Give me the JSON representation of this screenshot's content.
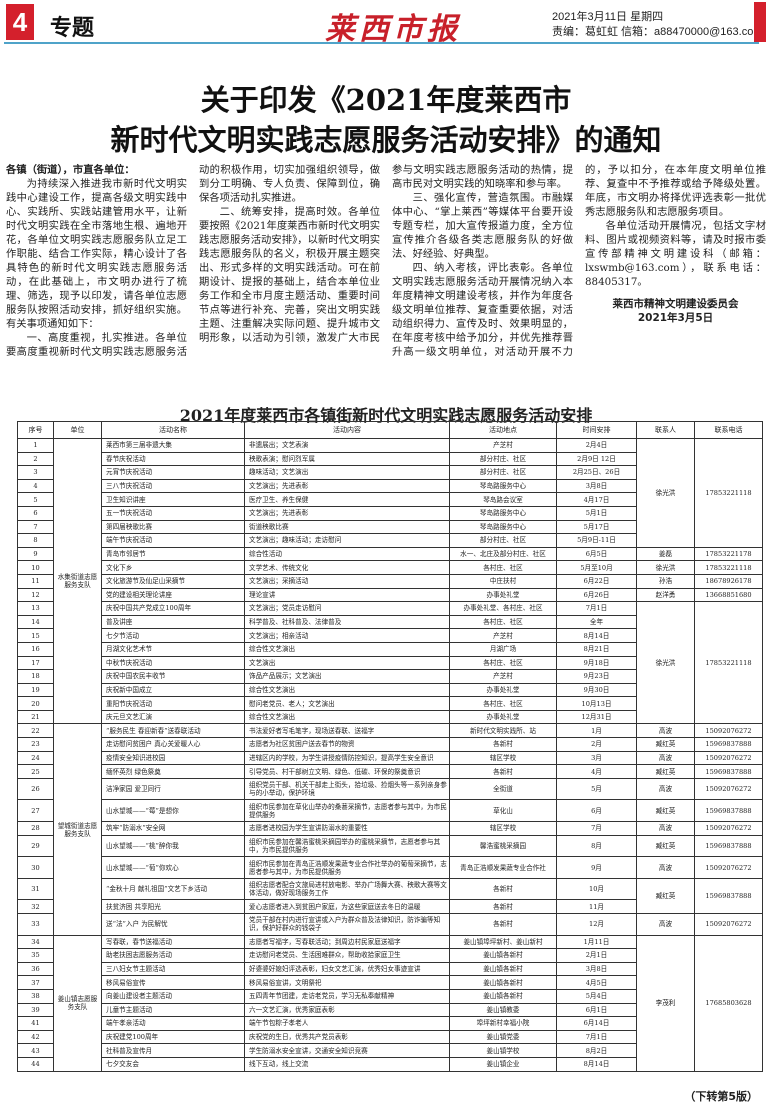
{
  "header": {
    "page_number": "4",
    "section": "专题",
    "masthead": "莱西市报",
    "date": "2021年3月11日 星期四",
    "editor": "责编：葛虹虹  信箱：a88470000@163.com",
    "accent_color": "#d4202c",
    "rule_color": "#4fa3c9"
  },
  "headline": {
    "line1": "关于印发《2021年度莱西市",
    "line2": "新时代文明实践志愿服务活动安排》的通知"
  },
  "article": {
    "salutation": "各镇（街道），市直各单位：",
    "paragraphs": [
      "为持续深入推进我市新时代文明实践中心建设工作，提高各级文明实践中心、实践所、实践站建管用水平，让新时代文明实践在全市落地生根、遍地开花，各单位文明实践志愿服务队立足工作职能、结合工作实际，精心设计了各具特色的新时代文明实践志愿服务活动，在此基础上，市文明办进行了梳理、筛选，现予以印发，请各单位志愿服务队按照活动安排，抓好组织实施。有关事项通知如下：",
      "一、高度重视，扎实推进。各单位要高度重视新时代文明实践志愿服务活动的积极作用，切实加强组织领导，做到分工明确、专人负责、保障到位，确保各项活动扎实推进。",
      "二、统筹安排，提高时效。各单位要按照《2021年度莱西市新时代文明实践志愿服务活动安排》，以新时代文明实践志愿服务队的名义，积极开展主题突出、形式多样的文明实践活动。可在前期设计、提报的基础上，结合本单位业务工作和全市月度主题活动、重要时间节点等进行补充、完善，突出文明实践主题、注重解决实际问题、提升城市文明形象，以活动为引领，激发广大市民参与文明实践志愿服务活动的热情，提高市民对文明实践的知晓率和参与率。",
      "三、强化宣传，营造氛围。市融媒体中心、“掌上莱西”等媒体平台要开设专题专栏，加大宣传报道力度，全方位宣传推介各级各类志愿服务队的好做法、好经验、好典型。",
      "四、纳入考核，评比表彰。各单位文明实践志愿服务活动开展情况纳入本年度精神文明建设考核，并作为年度各级文明单位推荐、复查重要依据，对活动组织得力、宣传及时、效果明显的，在年度考核中给予加分，并优先推荐晋升高一级文明单位，对活动开展不力的，予以扣分，在本年度文明单位推荐、复查中不予推荐或给予降级处置。年底，市文明办将择优评选表彰一批优秀志愿服务队和志愿服务项目。",
      "各单位活动开展情况，包括文字材料、图片或视频资料等，请及时报市委宣传部精神文明建设科（邮箱：lxswmb@163.com），联系电话：88405317。"
    ],
    "signer": "莱西市精神文明建设委员会",
    "sign_date": "2021年3月5日"
  },
  "table": {
    "title": "2021年度莱西市各镇街新时代文明实践志愿服务活动安排",
    "columns": [
      "序号",
      "单位",
      "活动名称",
      "活动内容",
      "活动地点",
      "时间安排",
      "联系人",
      "联系电话"
    ],
    "units": [
      {
        "name": "水集街道志愿服务支队",
        "groups": [
          {
            "contact": "徐光洪",
            "phone": "17853221118",
            "rows": [
              [
                "1",
                "莱西市第三届非遗大集",
                "非遗展出；文艺表演",
                "产芝村",
                "2月4日"
              ],
              [
                "2",
                "春节庆祝活动",
                "秧歌表演；慰问烈军属",
                "部分村庄、社区",
                "2月9日 12日"
              ],
              [
                "3",
                "元宵节庆祝活动",
                "趣味活动；文艺演出",
                "部分村庄、社区",
                "2月25日、26日"
              ],
              [
                "4",
                "三八节庆祝活动",
                "文艺演出；先进表彰",
                "琴岛路服务中心",
                "3月8日"
              ],
              [
                "5",
                "卫生知识讲座",
                "医疗卫生、养生保健",
                "琴岛路会议室",
                "4月17日"
              ],
              [
                "6",
                "五一节庆祝活动",
                "文艺演出；先进表彰",
                "琴岛路服务中心",
                "5月1日"
              ],
              [
                "7",
                "第四届秧歌比赛",
                "街道秧歌比赛",
                "琴岛路服务中心",
                "5月17日"
              ],
              [
                "8",
                "端午节庆祝活动",
                "文艺演出；趣味活动；走访慰问",
                "部分村庄、社区",
                "5月9日-11日"
              ]
            ]
          },
          {
            "contact": "姜磊",
            "phone": "17853221178",
            "rows": [
              [
                "9",
                "青岛市邻居节",
                "综合性活动",
                "水一、北庄及部分村庄、社区",
                "6月5日"
              ]
            ]
          },
          {
            "contact": "徐光洪",
            "phone": "17853221118",
            "rows": [
              [
                "10",
                "文化下乡",
                "文学艺术、传统文化",
                "各村庄、社区",
                "5月至10月"
              ]
            ]
          },
          {
            "contact": "孙浩",
            "phone": "18678926178",
            "rows": [
              [
                "11",
                "文化旅游节及仙足山采摘节",
                "文艺演出；采摘活动",
                "中庄扶村",
                "6月22日"
              ]
            ]
          },
          {
            "contact": "赵洋勇",
            "phone": "13668851680",
            "rows": [
              [
                "12",
                "党的建设相关理论讲座",
                "理论宣讲",
                "办事处礼堂",
                "6月26日"
              ]
            ]
          },
          {
            "contact": "徐光洪",
            "phone": "17853221118",
            "rows": [
              [
                "13",
                "庆祝中国共产党成立100周年",
                "文艺演出；党员走访慰问",
                "办事处礼堂、各村庄、社区",
                "7月1日"
              ],
              [
                "14",
                "普及讲座",
                "科学普及、社科普及、法律普及",
                "各村庄、社区",
                "全年"
              ],
              [
                "15",
                "七夕节活动",
                "文艺演出；相亲活动",
                "产芝村",
                "8月14日"
              ],
              [
                "16",
                "月湖文化艺术节",
                "综合性文艺演出",
                "月湖广场",
                "8月21日"
              ],
              [
                "17",
                "中秋节庆祝活动",
                "文艺演出",
                "各村庄、社区",
                "9月18日"
              ],
              [
                "18",
                "庆祝中国农民丰收节",
                "饰品产品展示；文艺演出",
                "产芝村",
                "9月23日"
              ],
              [
                "19",
                "庆祝新中国成立",
                "综合性文艺演出",
                "办事处礼堂",
                "9月30日"
              ],
              [
                "20",
                "重阳节庆祝活动",
                "慰问老党员、老人；文艺演出",
                "各村庄、社区",
                "10月13日"
              ],
              [
                "21",
                "庆元旦文艺汇演",
                "综合性文艺演出",
                "办事处礼堂",
                "12月31日"
              ]
            ]
          }
        ]
      },
      {
        "name": "望城街道志愿服务支队",
        "groups": [
          {
            "contact": "高波",
            "phone": "15092076272",
            "rows": [
              [
                "22",
                "“服务民生 春迎新春”送春联活动",
                "书法爱好者写毛笔字，现场送春联、送福字",
                "新时代文明实践所、站",
                "1月"
              ]
            ]
          },
          {
            "contact": "臧红英",
            "phone": "15969837888",
            "rows": [
              [
                "23",
                "走访慰问贫困户 真心关爱暖人心",
                "志愿者为社区贫困户送去春节的物资",
                "各新村",
                "2月"
              ]
            ]
          },
          {
            "contact": "高波",
            "phone": "15092076272",
            "rows": [
              [
                "24",
                "疫情安全知识进校园",
                "进辖区内的学校，为学生讲授疫情防控知识，提高学生安全意识",
                "辖区学校",
                "3月"
              ]
            ]
          },
          {
            "contact": "臧红英",
            "phone": "15969837888",
            "rows": [
              [
                "25",
                "缅怀英烈 绿色祭奠",
                "引导党员、村干部树立文明、绿色、低碳、环保的祭奠意识",
                "各新村",
                "4月"
              ]
            ]
          },
          {
            "contact": "高波",
            "phone": "15092076272",
            "rows": [
              [
                "26",
                "洁净家园 爱卫同行",
                "组织党员干部、机关干部走上街头，拾垃圾、捡烟头等一系列亲身参与的小举动，保护环境",
                "全街道",
                "5月"
              ]
            ]
          },
          {
            "contact": "臧红英",
            "phone": "15969837888",
            "rows": [
              [
                "27",
                "山水望城——“莓”是想你",
                "组织市民参加在草化山举办的桑葚采摘节，志愿者参与其中，为市民提供服务",
                "草化山",
                "6月"
              ]
            ]
          },
          {
            "contact": "高波",
            "phone": "15092076272",
            "rows": [
              [
                "28",
                "筑牢“防溺水”安全网",
                "志愿者进校园为学生宣讲防溺水的重要性",
                "辖区学校",
                "7月"
              ]
            ]
          },
          {
            "contact": "臧红英",
            "phone": "15969837888",
            "rows": [
              [
                "29",
                "山水望城——“桃”醉你我",
                "组织市民参加在馨浩蜜桃采摘园举办的蜜桃采摘节，志愿者参与其中，为市民提供服务",
                "馨浩蜜桃采摘园",
                "8月"
              ]
            ]
          },
          {
            "contact": "高波",
            "phone": "15092076272",
            "rows": [
              [
                "30",
                "山水望城——“萄”你欢心",
                "组织市民参加在青岛正浩顺发果蔬专业合作社举办的葡萄采摘节，志愿者参与其中，为市民提供服务",
                "青岛正浩顺发果蔬专业合作社",
                "9月"
              ]
            ]
          },
          {
            "contact": "臧红英",
            "phone": "15969837888",
            "rows": [
              [
                "31",
                "“金秋十月 献礼祖国”文艺下乡活动",
                "组织志愿者配合文旅局进村放电影、举办广场舞大赛、秧歌大赛等文体活动，做好现场服务工作",
                "各新村",
                "10月"
              ],
              [
                "32",
                "扶贫济困 共享阳光",
                "爱心志愿者进入到贫困户家庭，为这些家庭送去冬日的温暖",
                "各新村",
                "11月"
              ]
            ]
          },
          {
            "contact": "高波",
            "phone": "15092076272",
            "rows": [
              [
                "33",
                "送“法”入户 为民解忧",
                "党员干部在村内进行宣讲或入户为群众普及法律知识，防诈骗等知识，保护好群众的钱袋子",
                "各新村",
                "12月"
              ]
            ]
          }
        ]
      },
      {
        "name": "姜山镇志愿服务支队",
        "groups": [
          {
            "contact": "李茂利",
            "phone": "17685803628",
            "rows": [
              [
                "34",
                "写春联，春节送福活动",
                "志愿者写福字，写春联活动；到周边村民家庭送福字",
                "姜山镇埠坪新村、姜山新村",
                "1月11日"
              ],
              [
                "35",
                "助老扶困志愿服务活动",
                "走访慰问老党员、生活困难群众，帮助收拾家庭卫生",
                "姜山镇各新村",
                "2月1日"
              ],
              [
                "36",
                "三八妇女节主题活动",
                "好婆婆好媳妇评选表彰，妇女文艺汇演，优秀妇女事迹宣讲",
                "姜山镇各新村",
                "3月8日"
              ],
              [
                "37",
                "移风易俗宣传",
                "移风易俗宣讲，文明祭祀",
                "姜山镇各新村",
                "4月5日"
              ],
              [
                "38",
                "向姜山建设者主题活动",
                "五四青年节团建，走访老党员，学习无私奉献精神",
                "姜山镇各新村",
                "5月4日"
              ],
              [
                "39",
                "儿童节主题活动",
                "六一文艺汇演，优秀家庭表彰",
                "姜山镇教委",
                "6月1日"
              ],
              [
                "41",
                "端午孝亲活动",
                "端午节包粽子孝老人",
                "埠坪新村幸福小院",
                "6月14日"
              ],
              [
                "42",
                "庆祝建党100周年",
                "庆祝党的生日，优秀共产党员表彰",
                "姜山镇党委",
                "7月1日"
              ],
              [
                "43",
                "社科普及宣传月",
                "学生防溺水安全宣讲，交通安全知识竞赛",
                "姜山镇学校",
                "8月2日"
              ],
              [
                "44",
                "七夕交友会",
                "线下互动，线上交流",
                "姜山镇企业",
                "8月14日"
              ]
            ]
          }
        ]
      }
    ]
  },
  "footer": {
    "continued": "（下转第5版）"
  }
}
